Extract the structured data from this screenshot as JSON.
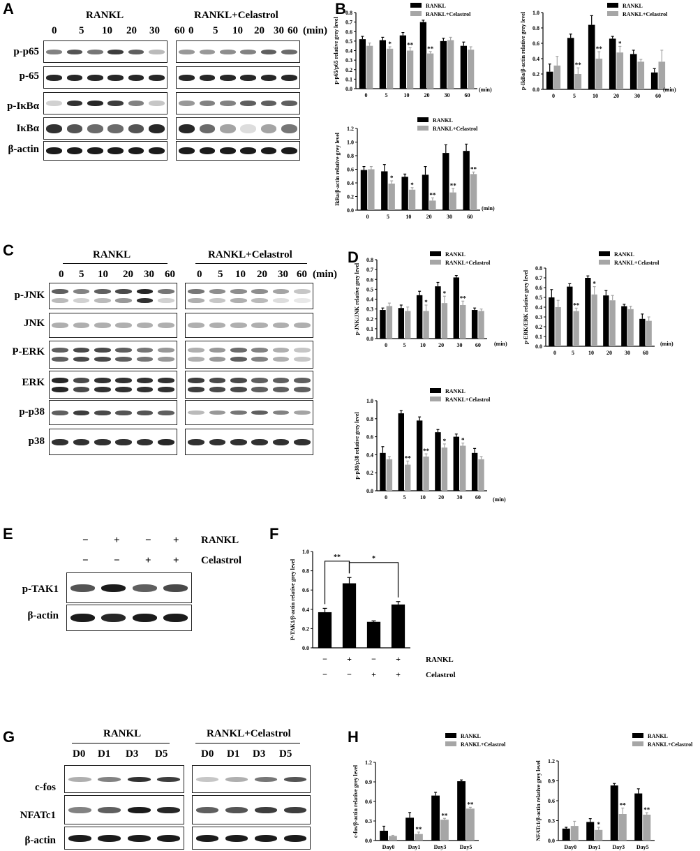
{
  "panels": {
    "A": {
      "label": "A",
      "headers": [
        "RANKL",
        "RANKL+Celastrol"
      ],
      "lanes": [
        "0",
        "5",
        "10",
        "20",
        "30",
        "60"
      ],
      "unit": "(min)",
      "rows": [
        "p-p65",
        "p-65",
        "p-IκBα",
        "IκBα",
        "β-actin"
      ]
    },
    "B": {
      "label": "B"
    },
    "C": {
      "label": "C",
      "headers": [
        "RANKL",
        "RANKL+Celastrol"
      ],
      "lanes": [
        "0",
        "5",
        "10",
        "20",
        "30",
        "60"
      ],
      "unit": "(min)",
      "rows": [
        "p-JNK",
        "JNK",
        "P-ERK",
        "ERK",
        "p-p38",
        "p38"
      ]
    },
    "D": {
      "label": "D"
    },
    "E": {
      "label": "E",
      "rankl_signs": [
        "−",
        "+",
        "−",
        "+"
      ],
      "celastrol_signs": [
        "−",
        "−",
        "+",
        "+"
      ],
      "rankl_label": "RANKL",
      "celastrol_label": "Celastrol",
      "rows": [
        "p-TAK1",
        "β-actin"
      ]
    },
    "F": {
      "label": "F"
    },
    "G": {
      "label": "G",
      "headers": [
        "RANKL",
        "RANKL+Celastrol"
      ],
      "lanes": [
        "D0",
        "D1",
        "D3",
        "D5"
      ],
      "rows": [
        "c-fos",
        "NFATc1",
        "β-actin"
      ]
    },
    "H": {
      "label": "H"
    }
  },
  "chart_data": [
    {
      "id": "B1",
      "type": "bar",
      "ylabel": "p-p65/p65 relative grey level",
      "categories": [
        "0",
        "5",
        "10",
        "20",
        "30",
        "60"
      ],
      "x_unit": "(min)",
      "ylim": [
        0,
        0.8
      ],
      "yticks": [
        "0.0",
        "0.1",
        "0.2",
        "0.3",
        "0.4",
        "0.5",
        "0.6",
        "0.7",
        "0.8"
      ],
      "legend": [
        "RANKL",
        "RANKL+Celastrol"
      ],
      "series": [
        {
          "name": "RANKL",
          "values": [
            0.52,
            0.51,
            0.56,
            0.7,
            0.5,
            0.45
          ],
          "err": [
            0.03,
            0.03,
            0.03,
            0.02,
            0.03,
            0.04
          ]
        },
        {
          "name": "RANKL+Celastrol",
          "values": [
            0.45,
            0.42,
            0.4,
            0.37,
            0.51,
            0.41
          ],
          "err": [
            0.03,
            0.02,
            0.03,
            0.02,
            0.03,
            0.03
          ]
        }
      ],
      "sig": [
        "",
        "*",
        "**",
        "**",
        "",
        ""
      ]
    },
    {
      "id": "B2",
      "type": "bar",
      "ylabel": "p-IkBa/β-actin relative grey level",
      "categories": [
        "0",
        "5",
        "10",
        "20",
        "30",
        "60"
      ],
      "x_unit": "(min)",
      "ylim": [
        0,
        1.0
      ],
      "yticks": [
        "0.0",
        "0.2",
        "0.4",
        "0.6",
        "0.8",
        "1.0"
      ],
      "legend": [
        "RANKL",
        "RANKL+Celastrol"
      ],
      "series": [
        {
          "name": "RANKL",
          "values": [
            0.23,
            0.67,
            0.84,
            0.66,
            0.46,
            0.22
          ],
          "err": [
            0.1,
            0.05,
            0.12,
            0.03,
            0.05,
            0.05
          ]
        },
        {
          "name": "RANKL+Celastrol",
          "values": [
            0.31,
            0.2,
            0.4,
            0.48,
            0.36,
            0.36
          ],
          "err": [
            0.12,
            0.08,
            0.09,
            0.08,
            0.03,
            0.15
          ]
        }
      ],
      "sig": [
        "",
        "**",
        "**",
        "*",
        "",
        ""
      ]
    },
    {
      "id": "B3",
      "type": "bar",
      "ylabel": "IkBa/β-actin relative grey level",
      "categories": [
        "0",
        "5",
        "10",
        "20",
        "30",
        "60"
      ],
      "x_unit": "(min)",
      "ylim": [
        0,
        1.2
      ],
      "yticks": [
        "0.0",
        "0.2",
        "0.4",
        "0.6",
        "0.8",
        "1.0",
        "1.2"
      ],
      "legend": [
        "RANKL",
        "RANKL+Celastrol"
      ],
      "series": [
        {
          "name": "RANKL",
          "values": [
            0.59,
            0.57,
            0.49,
            0.52,
            0.84,
            0.87
          ],
          "err": [
            0.05,
            0.1,
            0.04,
            0.12,
            0.12,
            0.1
          ]
        },
        {
          "name": "RANKL+Celastrol",
          "values": [
            0.6,
            0.39,
            0.3,
            0.14,
            0.26,
            0.53
          ],
          "err": [
            0.04,
            0.04,
            0.03,
            0.04,
            0.06,
            0.03
          ]
        }
      ],
      "sig": [
        "",
        "*",
        "*",
        "**",
        "**",
        "**"
      ]
    },
    {
      "id": "D1",
      "type": "bar",
      "ylabel": "p-JNK/JNK relative grey level",
      "categories": [
        "0",
        "5",
        "10",
        "20",
        "30",
        "60"
      ],
      "x_unit": "(min)",
      "ylim": [
        0,
        0.8
      ],
      "yticks": [
        "0.0",
        "0.1",
        "0.2",
        "0.3",
        "0.4",
        "0.5",
        "0.6",
        "0.7",
        "0.8"
      ],
      "legend": [
        "RANKL",
        "RANKL+Celastrol"
      ],
      "series": [
        {
          "name": "RANKL",
          "values": [
            0.29,
            0.31,
            0.44,
            0.53,
            0.62,
            0.29
          ],
          "err": [
            0.02,
            0.03,
            0.04,
            0.04,
            0.02,
            0.02
          ]
        },
        {
          "name": "RANKL+Celastrol",
          "values": [
            0.33,
            0.28,
            0.28,
            0.36,
            0.34,
            0.28
          ],
          "err": [
            0.03,
            0.04,
            0.06,
            0.07,
            0.04,
            0.02
          ]
        }
      ],
      "sig": [
        "",
        "",
        "*",
        "*",
        "**",
        ""
      ]
    },
    {
      "id": "D2",
      "type": "bar",
      "ylabel": "p-ERK/ERK relative grey level",
      "categories": [
        "0",
        "5",
        "10",
        "20",
        "30",
        "60"
      ],
      "x_unit": "(min)",
      "ylim": [
        0,
        0.8
      ],
      "yticks": [
        "0.0",
        "0.1",
        "0.2",
        "0.3",
        "0.4",
        "0.5",
        "0.6",
        "0.7",
        "0.8"
      ],
      "legend": [
        "RANKL",
        "RANKL+Celastrol"
      ],
      "series": [
        {
          "name": "RANKL",
          "values": [
            0.5,
            0.61,
            0.7,
            0.52,
            0.41,
            0.28
          ],
          "err": [
            0.08,
            0.03,
            0.02,
            0.05,
            0.02,
            0.05
          ]
        },
        {
          "name": "RANKL+Celastrol",
          "values": [
            0.4,
            0.36,
            0.53,
            0.47,
            0.38,
            0.26
          ],
          "err": [
            0.07,
            0.03,
            0.08,
            0.05,
            0.03,
            0.04
          ]
        }
      ],
      "sig": [
        "",
        "**",
        "*",
        "",
        "",
        ""
      ]
    },
    {
      "id": "D3",
      "type": "bar",
      "ylabel": "p-p38/p38 relative grey level",
      "categories": [
        "0",
        "5",
        "10",
        "20",
        "30",
        "60"
      ],
      "x_unit": "(min)",
      "ylim": [
        0,
        1.0
      ],
      "yticks": [
        "0.0",
        "0.2",
        "0.4",
        "0.6",
        "0.8",
        "1.0"
      ],
      "legend": [
        "RANKL",
        "RANKL+Celastrol"
      ],
      "series": [
        {
          "name": "RANKL",
          "values": [
            0.42,
            0.86,
            0.78,
            0.65,
            0.6,
            0.42
          ],
          "err": [
            0.07,
            0.03,
            0.04,
            0.03,
            0.03,
            0.05
          ]
        },
        {
          "name": "RANKL+Celastrol",
          "values": [
            0.35,
            0.29,
            0.38,
            0.48,
            0.5,
            0.35
          ],
          "err": [
            0.03,
            0.04,
            0.03,
            0.04,
            0.03,
            0.03
          ]
        }
      ],
      "sig": [
        "",
        "**",
        "**",
        "*",
        "*",
        ""
      ]
    },
    {
      "id": "F",
      "type": "bar",
      "ylabel": "P-TAK1/β-actin relative grey level",
      "ylim": [
        0,
        1.0
      ],
      "yticks": [
        "0.0",
        "0.2",
        "0.4",
        "0.6",
        "0.8",
        "1.0"
      ],
      "rankl_signs": [
        "−",
        "+",
        "−",
        "+"
      ],
      "celastrol_signs": [
        "−",
        "−",
        "+",
        "+"
      ],
      "rankl_label": "RANKL",
      "celastrol_label": "Celastrol",
      "values": [
        0.37,
        0.67,
        0.27,
        0.45
      ],
      "err": [
        0.04,
        0.06,
        0.01,
        0.03
      ],
      "brackets": [
        {
          "from": 0,
          "to": 1,
          "label": "**"
        },
        {
          "from": 1,
          "to": 3,
          "label": "*"
        }
      ]
    },
    {
      "id": "H1",
      "type": "bar",
      "ylabel": "c-fos/β-actin relative grey level",
      "categories": [
        "Day0",
        "Day1",
        "Day3",
        "Day5"
      ],
      "ylim": [
        0,
        1.2
      ],
      "yticks": [
        "0.0",
        "0.3",
        "0.6",
        "0.9",
        "1.2"
      ],
      "legend": [
        "RANKL",
        "RANKL+Celastrol"
      ],
      "series": [
        {
          "name": "RANKL",
          "values": [
            0.15,
            0.35,
            0.69,
            0.91
          ],
          "err": [
            0.07,
            0.08,
            0.05,
            0.02
          ]
        },
        {
          "name": "RANKL+Celastrol",
          "values": [
            0.07,
            0.1,
            0.32,
            0.49
          ],
          "err": [
            0.01,
            0.03,
            0.02,
            0.02
          ]
        }
      ],
      "sig": [
        "",
        "**",
        "**",
        "**"
      ]
    },
    {
      "id": "H2",
      "type": "bar",
      "ylabel": "NFATc1/β-actin relative grey level",
      "categories": [
        "Day0",
        "Day1",
        "Day3",
        "Day5"
      ],
      "ylim": [
        0,
        1.2
      ],
      "yticks": [
        "0.0",
        "0.3",
        "0.6",
        "0.9",
        "1.2"
      ],
      "legend": [
        "RANKL",
        "RANKL+Celastrol"
      ],
      "series": [
        {
          "name": "RANKL",
          "values": [
            0.18,
            0.28,
            0.83,
            0.71
          ],
          "err": [
            0.02,
            0.05,
            0.03,
            0.07
          ]
        },
        {
          "name": "RANKL+Celastrol",
          "values": [
            0.22,
            0.16,
            0.4,
            0.39
          ],
          "err": [
            0.07,
            0.04,
            0.09,
            0.03
          ]
        }
      ],
      "sig": [
        "",
        "*",
        "**",
        "**"
      ]
    }
  ]
}
